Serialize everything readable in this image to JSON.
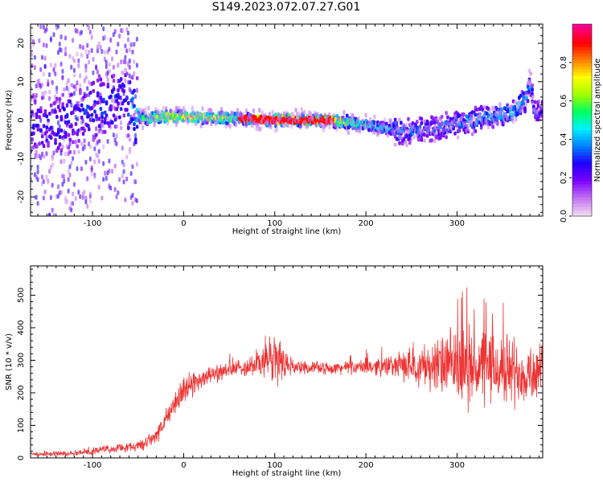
{
  "title": "S149.2023.072.07.27.G01",
  "chart_data": [
    {
      "type": "heatmap",
      "xlabel": "Height of straight line (km)",
      "ylabel": "Frequency (Hz)",
      "xlim": [
        -168,
        394
      ],
      "ylim": [
        -25,
        25
      ],
      "x_ticks": [
        -100,
        0,
        100,
        200,
        300
      ],
      "y_ticks": [
        -20,
        -10,
        0,
        10,
        20
      ],
      "colorbar": {
        "label": "Normalized spectral amplitude",
        "range": [
          0,
          1
        ],
        "ticks": [
          "0.0",
          "0.2",
          "0.4",
          "0.6",
          "0.8"
        ],
        "colormap": [
          "#f0d8f4",
          "#c070f0",
          "#7a00ff",
          "#1e00ff",
          "#0080ff",
          "#00f0ff",
          "#00ff60",
          "#a0ff00",
          "#ffff00",
          "#ff8000",
          "#ff0000",
          "#ff0090"
        ]
      },
      "ridge": {
        "x": [
          -168,
          -140,
          -110,
          -80,
          -65,
          -55,
          -45,
          -20,
          0,
          30,
          65,
          100,
          130,
          160,
          190,
          220,
          240,
          260,
          280,
          300,
          320,
          340,
          360,
          375,
          380,
          385,
          394
        ],
        "frequency": [
          -1,
          -2,
          2,
          4,
          6,
          2,
          0.5,
          0.8,
          0.8,
          0.8,
          0.3,
          0,
          0,
          0,
          -0.8,
          -2,
          -3,
          -2.5,
          -2,
          -1,
          0,
          1,
          2,
          5,
          10,
          2,
          3
        ],
        "peak_amplitude": [
          0.25,
          0.3,
          0.3,
          0.35,
          0.3,
          0.45,
          0.55,
          0.75,
          0.75,
          0.7,
          0.6,
          0.95,
          0.85,
          0.8,
          0.55,
          0.45,
          0.4,
          0.35,
          0.35,
          0.4,
          0.4,
          0.4,
          0.45,
          0.45,
          0.4,
          0.35,
          0.3
        ]
      }
    },
    {
      "type": "line",
      "xlabel": "Height of straight line (km)",
      "ylabel": "SNR (10 * v/v)",
      "xlim": [
        -168,
        394
      ],
      "ylim": [
        0,
        590
      ],
      "x_ticks": [
        -100,
        0,
        100,
        200,
        300
      ],
      "y_ticks": [
        0,
        100,
        200,
        300,
        400,
        500
      ],
      "color": "#ee3333",
      "series": [
        {
          "x": [
            -168,
            -150,
            -120,
            -100,
            -80,
            -60,
            -45,
            -30,
            -20,
            -10,
            0,
            10,
            20,
            40,
            60,
            80,
            90,
            100,
            110,
            120,
            140,
            160,
            180,
            200,
            220,
            240,
            260,
            280,
            300,
            320,
            340,
            360,
            380,
            394
          ],
          "mean": [
            12,
            12,
            15,
            22,
            28,
            32,
            40,
            70,
            110,
            170,
            205,
            230,
            245,
            265,
            275,
            290,
            300,
            305,
            295,
            280,
            278,
            275,
            278,
            280,
            282,
            285,
            285,
            283,
            282,
            280,
            275,
            270,
            265,
            260
          ],
          "spread": [
            6,
            7,
            9,
            10,
            12,
            14,
            18,
            25,
            35,
            40,
            45,
            40,
            30,
            28,
            25,
            40,
            70,
            95,
            60,
            20,
            18,
            18,
            20,
            25,
            30,
            45,
            65,
            90,
            120,
            130,
            120,
            110,
            100,
            90
          ]
        }
      ]
    }
  ]
}
